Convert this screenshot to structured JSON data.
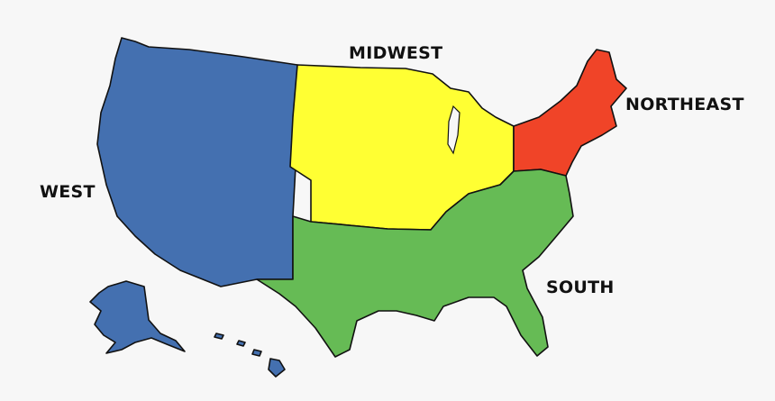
{
  "regions": [
    {
      "name": "WEST",
      "color": "#4470b0"
    },
    {
      "name": "MIDWEST",
      "color": "#ffff33"
    },
    {
      "name": "NORTHEAST",
      "color": "#f04428"
    },
    {
      "name": "SOUTH",
      "color": "#66bb55"
    }
  ],
  "background": "#f7f7f7"
}
